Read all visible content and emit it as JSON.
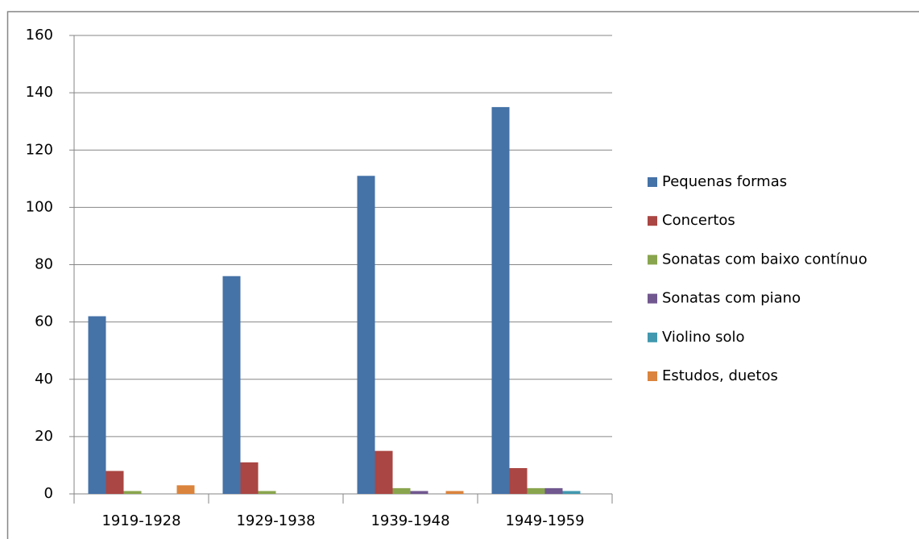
{
  "chart_data": {
    "type": "bar",
    "categories": [
      "1919-1928",
      "1929-1938",
      "1939-1948",
      "1949-1959"
    ],
    "series": [
      {
        "name": "Pequenas formas",
        "color": "#4572a7",
        "values": [
          62,
          76,
          111,
          135
        ]
      },
      {
        "name": "Concertos",
        "color": "#aa4643",
        "values": [
          8,
          11,
          15,
          9
        ]
      },
      {
        "name": "Sonatas com baixo contínuo",
        "color": "#89a54e",
        "values": [
          1,
          1,
          2,
          2
        ]
      },
      {
        "name": "Sonatas com piano",
        "color": "#71588f",
        "values": [
          0,
          0,
          1,
          2
        ]
      },
      {
        "name": "Violino solo",
        "color": "#4198af",
        "values": [
          0,
          0,
          0,
          1
        ]
      },
      {
        "name": "Estudos, duetos",
        "color": "#db843d",
        "values": [
          3,
          0,
          1,
          0
        ]
      }
    ],
    "ylim": [
      0,
      160
    ],
    "yticks": [
      0,
      20,
      40,
      60,
      80,
      100,
      120,
      140,
      160
    ],
    "grid": true,
    "legend": "right"
  }
}
